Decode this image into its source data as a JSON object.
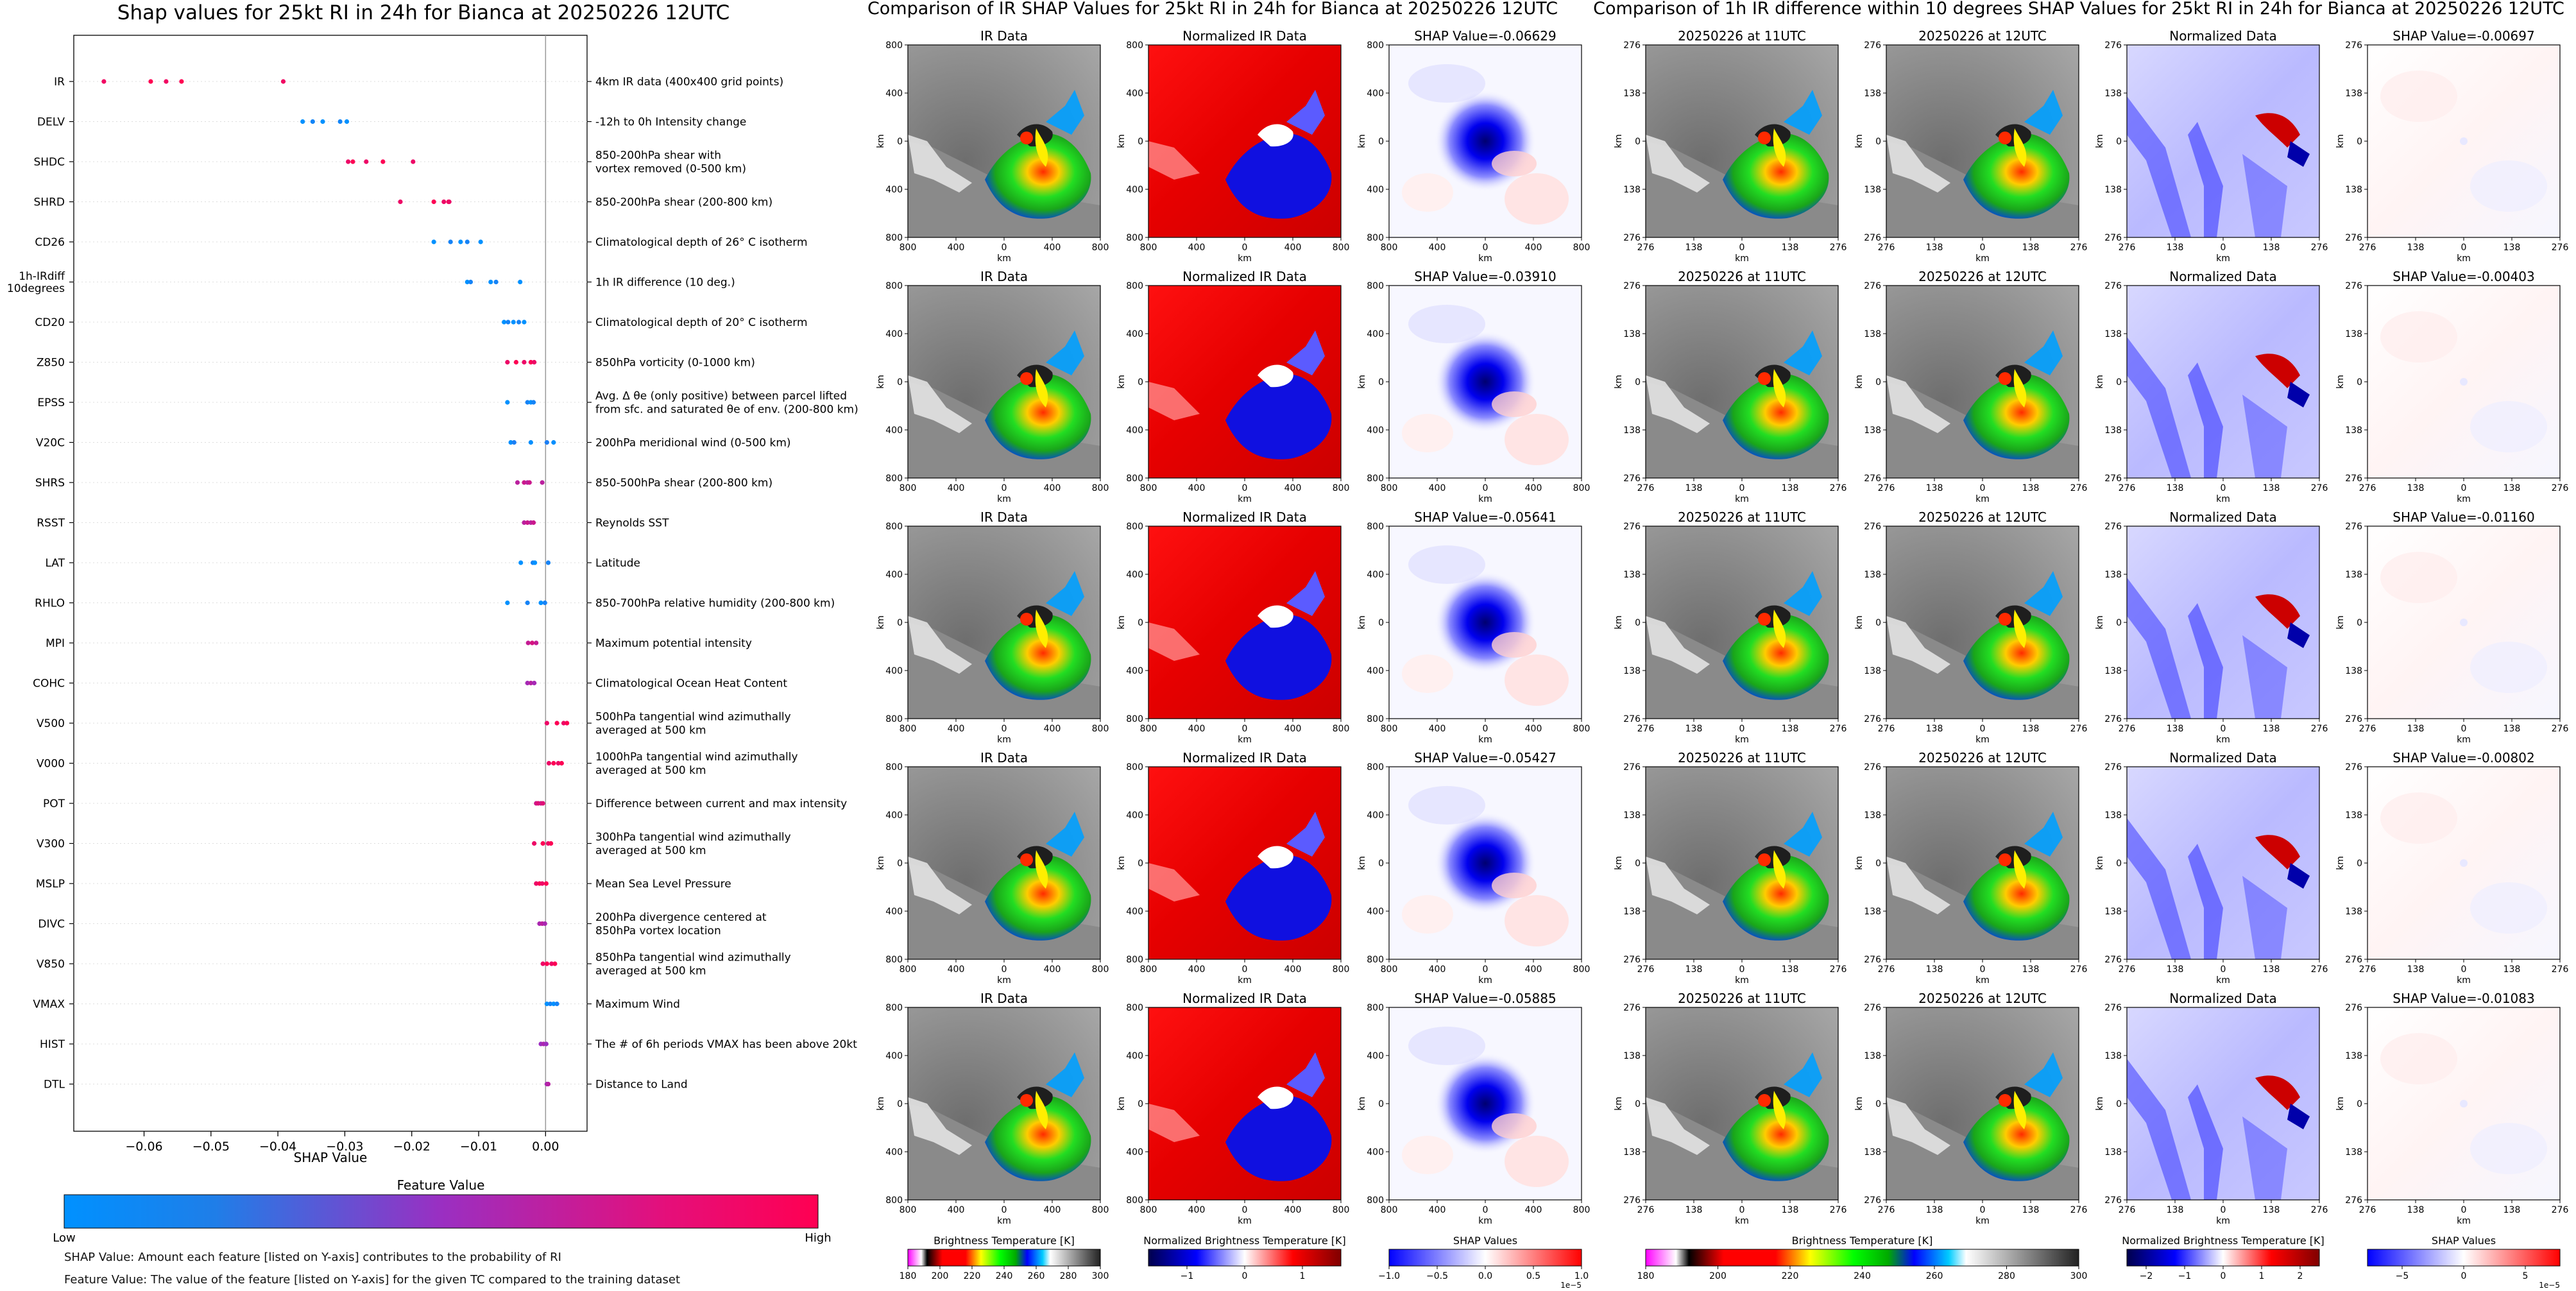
{
  "shap_bar": {
    "title": "Shap values for 25kt RI in 24h for Bianca at 20250226 12UTC",
    "xlabel": "SHAP Value",
    "colorbar_title": "Feature Value",
    "colorbar_low": "Low",
    "colorbar_high": "High",
    "note1": "SHAP Value: Amount each feature [listed on Y-axis] contributes to the probability of RI",
    "note2": "Feature Value: The value of the feature [listed on Y-axis] for the given TC compared to the training dataset",
    "colors": {
      "low": "#1E88E5",
      "mid": "#8E24AA",
      "high": "#FF0052"
    }
  },
  "mid_title": "Comparison of IR SHAP Values for 25kt RI in 24h for Bianca at 20250226 12UTC",
  "right_title": "Comparison of 1h IR difference within 10 degrees SHAP Values for 25kt RI in 24h for Bianca at 20250226 12UTC",
  "panel_titles": {
    "ir": "IR Data",
    "norm_ir": "Normalized IR Data",
    "t11": "20250226 at 11UTC",
    "t12": "20250226 at 12UTC",
    "norm": "Normalized Data"
  },
  "mid_shap_titles": [
    "SHAP Value=-0.06629",
    "SHAP Value=-0.03910",
    "SHAP Value=-0.05641",
    "SHAP Value=-0.05427",
    "SHAP Value=-0.05885"
  ],
  "right_shap_titles": [
    "SHAP Value=-0.00697",
    "SHAP Value=-0.00403",
    "SHAP Value=-0.01160",
    "SHAP Value=-0.00802",
    "SHAP Value=-0.01083"
  ],
  "axis": {
    "km": "km",
    "ticks_800": [
      "800",
      "400",
      "0",
      "400",
      "800"
    ],
    "ticks_276": [
      "276",
      "138",
      "0",
      "138",
      "276"
    ]
  },
  "colorbars": {
    "bt": {
      "label": "Brightness Temperature [K]",
      "ticks_mid": [
        "180",
        "200",
        "220",
        "240",
        "260",
        "280",
        "300"
      ],
      "ticks_right": [
        "180",
        "200",
        "220",
        "240",
        "260",
        "280",
        "300"
      ]
    },
    "norm_mid": {
      "label": "Normalized Brightness Temperature [K]",
      "ticks": [
        "−1",
        "0",
        "1"
      ]
    },
    "shap_mid": {
      "label": "SHAP Values",
      "ticks": [
        "−1.0",
        "−0.5",
        "0.0",
        "0.5",
        "1.0"
      ],
      "exp": "1e−5"
    },
    "norm_right": {
      "label": "Normalized Brightness Temperature [K]",
      "ticks": [
        "−2",
        "−1",
        "0",
        "1",
        "2"
      ]
    },
    "shap_right": {
      "label": "SHAP Values",
      "ticks": [
        "−5",
        "0",
        "5"
      ],
      "exp": "1e−5"
    }
  },
  "chart_data": {
    "type": "scatter",
    "title": "Shap values for 25kt RI in 24h for Bianca at 20250226 12UTC",
    "xlabel": "SHAP Value",
    "xlim": [
      -0.0705,
      0.0062
    ],
    "xticks": [
      "−0.06",
      "−0.05",
      "−0.04",
      "−0.03",
      "−0.02",
      "−0.01",
      "0.00"
    ],
    "xtick_values": [
      -0.06,
      -0.05,
      -0.04,
      -0.03,
      -0.02,
      -0.01,
      0.0
    ],
    "features": [
      {
        "name": "IR",
        "desc": "4km IR data (400x400 grid points)",
        "c": 0.97,
        "x": [
          -0.066,
          -0.059,
          -0.0567,
          -0.0544,
          -0.0392
        ]
      },
      {
        "name": "DELV",
        "desc": "-12h to 0h Intensity change",
        "c": 0.02,
        "x": [
          -0.0363,
          -0.0348,
          -0.0333,
          -0.0307,
          -0.0297
        ]
      },
      {
        "name": "SHDC",
        "desc": "850-200hPa shear with|vortex removed (0-500 km)",
        "c": 0.95,
        "x": [
          -0.0295,
          -0.0288,
          -0.0268,
          -0.0243,
          -0.0198
        ]
      },
      {
        "name": "SHRD",
        "desc": "850-200hPa shear (200-800 km)",
        "c": 0.95,
        "x": [
          -0.0217,
          -0.0167,
          -0.0152,
          -0.0145,
          -0.0144
        ]
      },
      {
        "name": "CD26",
        "desc": "Climatological depth of 26° C isotherm",
        "c": 0.03,
        "x": [
          -0.0167,
          -0.0142,
          -0.0127,
          -0.0117,
          -0.0097
        ]
      },
      {
        "name": "1h-IRdiff|10degrees",
        "desc": "1h IR difference (10 deg.)",
        "c": 0.03,
        "x": [
          -0.0117,
          -0.0112,
          -0.0082,
          -0.0074,
          -0.0038
        ]
      },
      {
        "name": "CD20",
        "desc": "Climatological depth of 20° C isotherm",
        "c": 0.03,
        "x": [
          -0.0062,
          -0.0056,
          -0.0048,
          -0.004,
          -0.0032
        ]
      },
      {
        "name": "Z850",
        "desc": "850hPa vorticity (0-1000 km)",
        "c": 0.95,
        "x": [
          -0.0057,
          -0.0044,
          -0.0032,
          -0.0022,
          -0.0017
        ]
      },
      {
        "name": "EPSS",
        "desc": "Avg. Δ θe (only positive) between parcel lifted|from sfc. and saturated θe of env. (200-800 km)",
        "c": 0.03,
        "x": [
          -0.0057,
          -0.0027,
          -0.0022,
          -0.0018
        ]
      },
      {
        "name": "V20C",
        "desc": "200hPa meridional wind (0-500 km)",
        "c": 0.05,
        "x": [
          -0.0052,
          -0.0047,
          -0.0022,
          0.0002,
          0.0012
        ]
      },
      {
        "name": "SHRS",
        "desc": "850-500hPa shear (200-800 km)",
        "c": 0.7,
        "x": [
          -0.0042,
          -0.0032,
          -0.0027,
          -0.0024,
          -0.0005
        ]
      },
      {
        "name": "RSST",
        "desc": "Reynolds SST",
        "c": 0.7,
        "x": [
          -0.0032,
          -0.0027,
          -0.0022,
          -0.0018
        ]
      },
      {
        "name": "LAT",
        "desc": "Latitude",
        "c": 0.03,
        "x": [
          -0.0037,
          -0.0019,
          -0.0016,
          0.0004
        ]
      },
      {
        "name": "RHLO",
        "desc": "850-700hPa relative humidity (200-800 km)",
        "c": 0.03,
        "x": [
          -0.0057,
          -0.0027,
          -0.0007,
          -0.0001
        ]
      },
      {
        "name": "MPI",
        "desc": "Maximum potential intensity",
        "c": 0.75,
        "x": [
          -0.0026,
          -0.002,
          -0.0014
        ]
      },
      {
        "name": "COHC",
        "desc": "Climatological Ocean Heat Content",
        "c": 0.6,
        "x": [
          -0.0027,
          -0.0022,
          -0.0017
        ]
      },
      {
        "name": "V500",
        "desc": "500hPa tangential wind azimuthally|averaged at 500 km",
        "c": 0.95,
        "x": [
          0.0002,
          0.0017,
          0.0027,
          0.0032
        ]
      },
      {
        "name": "V000",
        "desc": "1000hPa tangential wind azimuthally|averaged at 500 km",
        "c": 0.95,
        "x": [
          0.0005,
          0.0012,
          0.0019,
          0.0024
        ]
      },
      {
        "name": "POT",
        "desc": "Difference between current and max intensity",
        "c": 0.8,
        "x": [
          -0.0014,
          -0.0011,
          -0.0007,
          -0.0004
        ]
      },
      {
        "name": "V300",
        "desc": "300hPa tangential wind azimuthally|averaged at 500 km",
        "c": 0.95,
        "x": [
          -0.0017,
          -0.0004,
          0.0004,
          0.0008
        ]
      },
      {
        "name": "MSLP",
        "desc": "Mean Sea Level Pressure",
        "c": 0.95,
        "x": [
          -0.0014,
          -0.0009,
          -0.0005,
          0.0001
        ]
      },
      {
        "name": "DIVC",
        "desc": "200hPa divergence centered at|850hPa vortex location",
        "c": 0.62,
        "x": [
          -0.0009,
          -0.0005,
          -0.0001
        ]
      },
      {
        "name": "V850",
        "desc": "850hPa tangential wind azimuthally|averaged at 500 km",
        "c": 0.95,
        "x": [
          -0.0004,
          0.0002,
          0.0009,
          0.0014
        ]
      },
      {
        "name": "VMAX",
        "desc": "Maximum Wind",
        "c": 0.03,
        "x": [
          0.0002,
          0.0007,
          0.0012,
          0.0017
        ]
      },
      {
        "name": "HIST",
        "desc": "The # of 6h periods VMAX has been above 20kt",
        "c": 0.55,
        "x": [
          -0.0007,
          -0.0003,
          0.0001
        ]
      },
      {
        "name": "DTL",
        "desc": "Distance to Land",
        "c": 0.6,
        "x": [
          0.0002,
          0.0004
        ]
      }
    ]
  }
}
